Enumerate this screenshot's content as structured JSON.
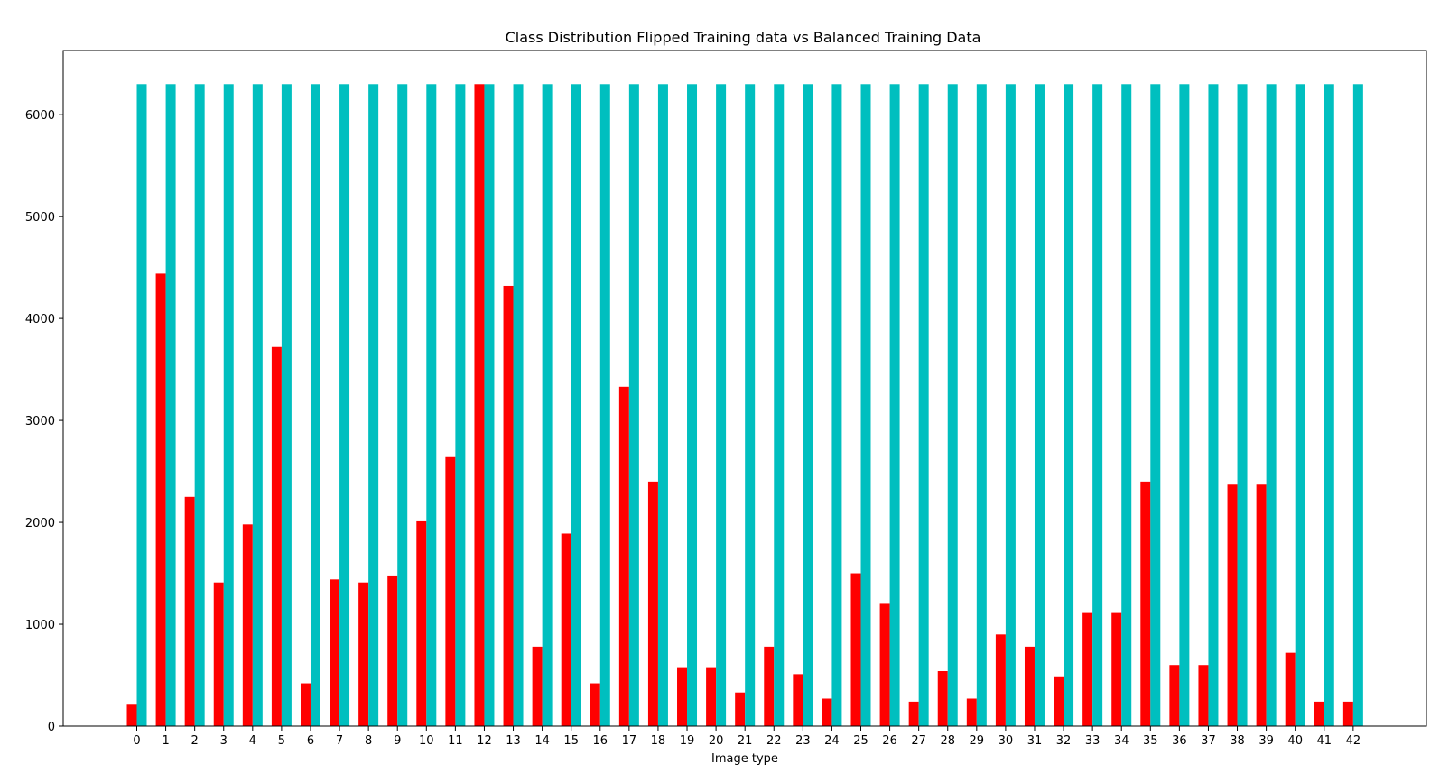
{
  "chart_data": {
    "type": "bar",
    "title": "Class Distribution Flipped Training data vs Balanced Training Data",
    "xlabel": "Image type",
    "ylabel": "",
    "ylim": [
      0,
      6630
    ],
    "yticks": [
      0,
      1000,
      2000,
      3000,
      4000,
      5000,
      6000
    ],
    "grid": false,
    "categories": [
      "0",
      "1",
      "2",
      "3",
      "4",
      "5",
      "6",
      "7",
      "8",
      "9",
      "10",
      "11",
      "12",
      "13",
      "14",
      "15",
      "16",
      "17",
      "18",
      "19",
      "20",
      "21",
      "22",
      "23",
      "24",
      "25",
      "26",
      "27",
      "28",
      "29",
      "30",
      "31",
      "32",
      "33",
      "34",
      "35",
      "36",
      "37",
      "38",
      "39",
      "40",
      "41",
      "42"
    ],
    "series": [
      {
        "color": "#ff0000",
        "values": [
          210,
          4440,
          2250,
          1410,
          1980,
          3720,
          420,
          1440,
          1410,
          1470,
          2010,
          2640,
          6300,
          4320,
          780,
          1890,
          420,
          3330,
          2400,
          570,
          570,
          330,
          780,
          510,
          270,
          1500,
          1200,
          240,
          540,
          270,
          900,
          780,
          480,
          1110,
          1110,
          2400,
          600,
          600,
          2370,
          2370,
          720,
          240,
          240
        ]
      },
      {
        "color": "#00bfbf",
        "values": [
          6300,
          6300,
          6300,
          6300,
          6300,
          6300,
          6300,
          6300,
          6300,
          6300,
          6300,
          6300,
          6300,
          6300,
          6300,
          6300,
          6300,
          6300,
          6300,
          6300,
          6300,
          6300,
          6300,
          6300,
          6300,
          6300,
          6300,
          6300,
          6300,
          6300,
          6300,
          6300,
          6300,
          6300,
          6300,
          6300,
          6300,
          6300,
          6300,
          6300,
          6300,
          6300,
          6300
        ]
      }
    ]
  }
}
